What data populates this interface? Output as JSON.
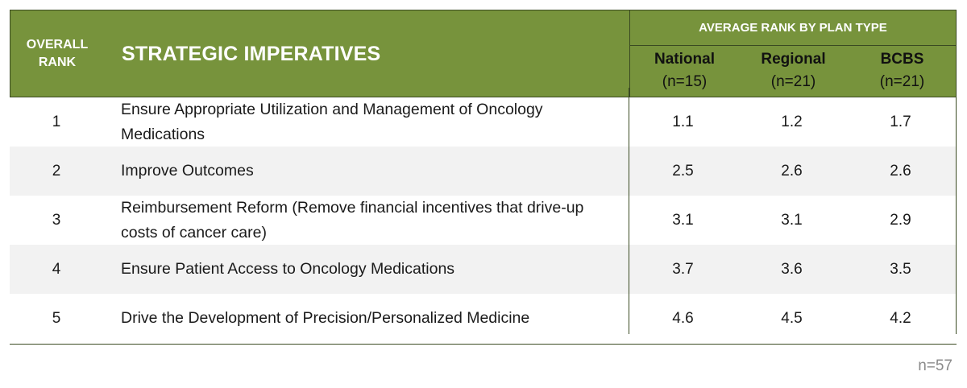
{
  "chart_data": {
    "type": "table",
    "header": {
      "rank_label": "OVERALL\nRANK",
      "title": "STRATEGIC IMPERATIVES",
      "group_label": "AVERAGE RANK BY PLAN TYPE",
      "columns": [
        {
          "name": "National",
          "n": "(n=15)"
        },
        {
          "name": "Regional",
          "n": "(n=21)"
        },
        {
          "name": "BCBS",
          "n": "(n=21)"
        }
      ]
    },
    "rows": [
      {
        "rank": "1",
        "label": "Ensure Appropriate Utilization and Management of Oncology Medications",
        "values": [
          "1.1",
          "1.2",
          "1.7"
        ]
      },
      {
        "rank": "2",
        "label": "Improve Outcomes",
        "values": [
          "2.5",
          "2.6",
          "2.6"
        ]
      },
      {
        "rank": "3",
        "label": "Reimbursement Reform (Remove financial incentives that drive-up costs of cancer care)",
        "values": [
          "3.1",
          "3.1",
          "2.9"
        ]
      },
      {
        "rank": "4",
        "label": "Ensure Patient Access to Oncology Medications",
        "values": [
          "3.7",
          "3.6",
          "3.5"
        ]
      },
      {
        "rank": "5",
        "label": "Drive the Development of Precision/Personalized Medicine",
        "values": [
          "4.6",
          "4.5",
          "4.2"
        ]
      }
    ],
    "footnote": "n=57"
  },
  "colors": {
    "header_bg": "#77933c",
    "row_shade": "#f2f2f2",
    "border": "#3a4a22"
  }
}
